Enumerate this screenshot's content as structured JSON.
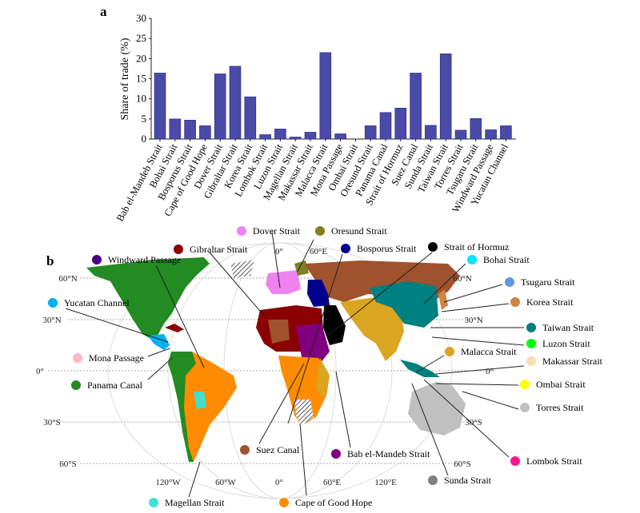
{
  "panel_a_label": "a",
  "panel_b_label": "b",
  "chart_data": {
    "type": "bar",
    "title": "",
    "xlabel": "",
    "ylabel": "Share of trade (%)",
    "ylim": [
      0,
      30
    ],
    "yticks": [
      0,
      5,
      10,
      15,
      20,
      25,
      30
    ],
    "grid": false,
    "bar_color": "#4a4aa8",
    "categories": [
      "Bab el-Mandeb Strait",
      "Bohai Strait",
      "Bosporus Strait",
      "Cape of Good Hope",
      "Dover Strait",
      "Gibraltar Strait",
      "Korea Strait",
      "Lombok Strait",
      "Luzon Strait",
      "Magellan Strait",
      "Makassar Strait",
      "Malacca Strait",
      "Mona Passage",
      "Ombai Strait",
      "Oresund Strait",
      "Panama Canal",
      "Strait of Hormuz",
      "Suez Canal",
      "Sunda Strait",
      "Taiwan Strait",
      "Torres Strait",
      "Tsugaru Strait",
      "Windward Passage",
      "Yucatan Channel"
    ],
    "values": [
      16.4,
      5.0,
      4.7,
      3.3,
      16.2,
      18.1,
      10.5,
      1.1,
      2.5,
      0.5,
      1.7,
      21.5,
      1.3,
      0.0,
      3.3,
      6.6,
      7.7,
      16.4,
      3.4,
      21.2,
      2.2,
      5.1,
      2.3,
      3.3
    ]
  },
  "map": {
    "lat_labels": [
      "60°N",
      "30°N",
      "0°",
      "30°S",
      "60°S"
    ],
    "lon_labels_bottom": [
      "120°W",
      "60°W",
      "0°",
      "60°E",
      "120°E"
    ],
    "lon_labels_top": [
      "0°",
      "60°E"
    ],
    "legend": [
      {
        "name": "Dover Strait",
        "color": "#ee82ee"
      },
      {
        "name": "Oresund Strait",
        "color": "#808020"
      },
      {
        "name": "Gibraltar Strait",
        "color": "#8b0000"
      },
      {
        "name": "Bosporus Strait",
        "color": "#00008b"
      },
      {
        "name": "Strait of Hormuz",
        "color": "#000000"
      },
      {
        "name": "Bohai Strait",
        "color": "#00e5ff"
      },
      {
        "name": "Windward Passage",
        "color": "#4b0082"
      },
      {
        "name": "Tsugaru Strait",
        "color": "#6495ed"
      },
      {
        "name": "Yucatan Channel",
        "color": "#00b0f0"
      },
      {
        "name": "Korea Strait",
        "color": "#cd853f"
      },
      {
        "name": "Taiwan Strait",
        "color": "#008080"
      },
      {
        "name": "Luzon Strait",
        "color": "#00ff00"
      },
      {
        "name": "Malacca Strait",
        "color": "#daa520"
      },
      {
        "name": "Mona Passage",
        "color": "#ffb6c1"
      },
      {
        "name": "Makassar Strait",
        "color": "#f5deb3"
      },
      {
        "name": "Panama Canal",
        "color": "#228b22"
      },
      {
        "name": "Ombai Strait",
        "color": "#ffff00"
      },
      {
        "name": "Torres Strait",
        "color": "#c0c0c0"
      },
      {
        "name": "Suez Canal",
        "color": "#a0522d"
      },
      {
        "name": "Bab el-Mandeb Strait",
        "color": "#800080"
      },
      {
        "name": "Lombok Strait",
        "color": "#ff1493"
      },
      {
        "name": "Sunda Strait",
        "color": "#808080"
      },
      {
        "name": "Magellan Strait",
        "color": "#40e0d0"
      },
      {
        "name": "Cape of Good Hope",
        "color": "#ff8c00"
      }
    ]
  }
}
